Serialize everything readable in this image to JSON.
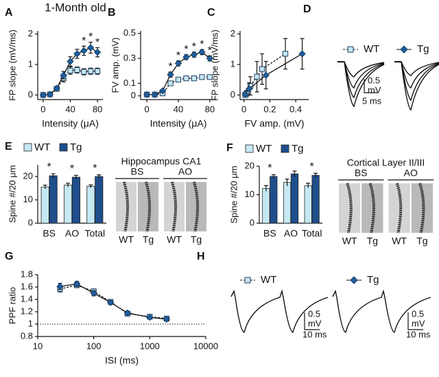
{
  "title": "1-Month old",
  "chart_data": [
    {
      "type": "line",
      "panel": "A",
      "xlabel": "Intensity (μA)",
      "ylabel": "FP slope (mV/ms)",
      "x": [
        0,
        10,
        20,
        30,
        40,
        50,
        60,
        70,
        80
      ],
      "xlim": [
        -8,
        88
      ],
      "xticks": [
        0,
        40,
        80
      ],
      "ylim": [
        -0.15,
        2.1
      ],
      "yticks": [
        0,
        1,
        2
      ],
      "series": [
        {
          "name": "WT",
          "color": "#c5e8f3",
          "marker": "square",
          "line_style": "dashed",
          "values": [
            0,
            0.02,
            0.2,
            0.55,
            0.8,
            0.82,
            0.76,
            0.78,
            0.78
          ],
          "errors": [
            0.03,
            0.03,
            0.06,
            0.12,
            0.12,
            0.1,
            0.1,
            0.1,
            0.1
          ]
        },
        {
          "name": "Tg",
          "color": "#1f5f9e",
          "marker": "diamond",
          "line_style": "solid",
          "values": [
            0,
            0.02,
            0.22,
            0.65,
            1.1,
            1.35,
            1.45,
            1.55,
            1.4
          ],
          "errors": [
            0.03,
            0.03,
            0.06,
            0.12,
            0.15,
            0.15,
            0.15,
            0.18,
            0.15
          ]
        }
      ],
      "significance": [
        null,
        null,
        null,
        null,
        null,
        null,
        "*",
        "*",
        "*"
      ]
    },
    {
      "type": "line",
      "panel": "B",
      "xlabel": "Intensity (μA)",
      "ylabel": "FV amp. (mV)",
      "x": [
        0,
        10,
        20,
        30,
        40,
        50,
        60,
        70,
        80
      ],
      "xlim": [
        -8,
        88
      ],
      "xticks": [
        0,
        40,
        80
      ],
      "ylim": [
        -0.03,
        0.52
      ],
      "yticks": [
        0,
        0.1,
        0.3,
        0.5
      ],
      "series": [
        {
          "name": "WT",
          "color": "#c5e8f3",
          "marker": "square",
          "line_style": "dashed",
          "values": [
            0.01,
            0.01,
            0.02,
            0.1,
            0.13,
            0.14,
            0.14,
            0.15,
            0.15
          ],
          "errors": [
            0.005,
            0.005,
            0.01,
            0.015,
            0.01,
            0.01,
            0.01,
            0.01,
            0.01
          ]
        },
        {
          "name": "Tg",
          "color": "#1f5f9e",
          "marker": "diamond",
          "line_style": "solid",
          "values": [
            0.01,
            0.01,
            0.04,
            0.17,
            0.26,
            0.31,
            0.33,
            0.35,
            0.3
          ],
          "errors": [
            0.005,
            0.005,
            0.01,
            0.02,
            0.02,
            0.02,
            0.02,
            0.02,
            0.02
          ]
        }
      ],
      "significance": [
        null,
        null,
        null,
        "*",
        "*",
        "*",
        "*",
        "*",
        "*"
      ]
    },
    {
      "type": "line",
      "panel": "C",
      "xlabel": "FV amp. (mV)",
      "ylabel": "FP slope (mV/ms)",
      "xlim": [
        -0.03,
        0.5
      ],
      "xticks": [
        0,
        0.2,
        0.4
      ],
      "ylim": [
        -0.15,
        2.1
      ],
      "yticks": [
        0,
        1,
        2
      ],
      "series": [
        {
          "name": "WT",
          "color": "#c5e8f3",
          "marker": "square",
          "line_style": "dashed",
          "x": [
            0.01,
            0.02,
            0.05,
            0.1,
            0.14,
            0.32
          ],
          "values": [
            0,
            0.05,
            0.3,
            0.6,
            0.85,
            1.35
          ],
          "errors": [
            0.05,
            0.1,
            0.3,
            0.5,
            0.5,
            0.5
          ]
        },
        {
          "name": "Tg",
          "color": "#1f5f9e",
          "marker": "diamond",
          "line_style": "solid",
          "x": [
            0.01,
            0.04,
            0.17,
            0.45
          ],
          "values": [
            0.02,
            0.2,
            0.65,
            1.35
          ],
          "errors": [
            0.05,
            0.2,
            0.45,
            0.5
          ]
        }
      ]
    },
    {
      "type": "traces",
      "panel": "D",
      "series": [
        {
          "name": "WT",
          "color": "#c5e8f3",
          "marker": "square"
        },
        {
          "name": "Tg",
          "color": "#1f5f9e",
          "marker": "diamond"
        }
      ],
      "scale_bars": [
        [
          "0.5",
          "mV",
          "5 ms"
        ]
      ]
    },
    {
      "type": "bar",
      "panel": "E",
      "ylabel": "Spine #/20 μm",
      "categories": [
        "BS",
        "AO",
        "Total"
      ],
      "ylim": [
        0,
        25
      ],
      "yticks": [
        0,
        10,
        20
      ],
      "series": [
        {
          "name": "WT",
          "color": "#c5e8f3",
          "values": [
            15.5,
            16.3,
            15.8
          ],
          "errors": [
            0.8,
            0.8,
            0.6
          ]
        },
        {
          "name": "Tg",
          "color": "#1f4e8c",
          "values": [
            20.3,
            19.7,
            20
          ],
          "errors": [
            0.9,
            0.8,
            0.7
          ]
        }
      ],
      "significance": [
        "*",
        "*",
        "*"
      ],
      "images": {
        "title": "Hippocampus CA1",
        "groups": [
          {
            "label": "BS",
            "columns": [
              "WT",
              "Tg"
            ]
          },
          {
            "label": "AO",
            "columns": [
              "WT",
              "Tg"
            ]
          }
        ]
      }
    },
    {
      "type": "bar",
      "panel": "F",
      "ylabel": "Spine #/20 μm",
      "categories": [
        "BS",
        "AO",
        "Total"
      ],
      "ylim": [
        0,
        20
      ],
      "yticks": [
        0,
        10,
        20
      ],
      "series": [
        {
          "name": "WT",
          "color": "#c5e8f3",
          "values": [
            12.2,
            14.3,
            13.2
          ],
          "errors": [
            1,
            1.2,
            0.8
          ]
        },
        {
          "name": "Tg",
          "color": "#1f4e8c",
          "values": [
            16.4,
            17.3,
            16.8
          ],
          "errors": [
            0.6,
            1,
            0.7
          ]
        }
      ],
      "significance": [
        "*",
        null,
        "*"
      ],
      "images": {
        "title": "Cortical Layer II/III",
        "groups": [
          {
            "label": "BS",
            "columns": [
              "WT",
              "Tg"
            ]
          },
          {
            "label": "AO",
            "columns": [
              "WT",
              "Tg"
            ]
          }
        ]
      }
    },
    {
      "type": "line",
      "panel": "G",
      "xlabel": "ISI (ms)",
      "ylabel": "PPF ratio",
      "xscale": "log",
      "x": [
        25,
        50,
        100,
        200,
        400,
        1000,
        2000
      ],
      "xlim": [
        10,
        10000
      ],
      "xticks": [
        10,
        100,
        1000,
        10000
      ],
      "ylim": [
        0.8,
        1.8
      ],
      "yticks": [
        0.8,
        1,
        1.2,
        1.4,
        1.6,
        1.8
      ],
      "hline": 1,
      "series": [
        {
          "name": "WT",
          "color": "#c5e8f3",
          "marker": "square",
          "line_style": "dashed",
          "values": [
            1.57,
            1.63,
            1.53,
            1.36,
            1.17,
            1.12,
            1.09
          ],
          "errors": [
            0.05,
            0.04,
            0.04,
            0.03,
            0.03,
            0.02,
            0.03
          ]
        },
        {
          "name": "Tg",
          "color": "#1f5f9e",
          "marker": "diamond",
          "line_style": "solid",
          "values": [
            1.61,
            1.65,
            1.5,
            1.35,
            1.18,
            1.11,
            1.08
          ],
          "errors": [
            0.05,
            0.04,
            0.04,
            0.03,
            0.03,
            0.02,
            0.03
          ]
        }
      ]
    },
    {
      "type": "traces",
      "panel": "H",
      "series": [
        {
          "name": "WT",
          "color": "#c5e8f3",
          "marker": "square"
        },
        {
          "name": "Tg",
          "color": "#1f5f9e",
          "marker": "diamond"
        }
      ],
      "scale_bars": [
        [
          "0.5",
          "mV",
          "10 ms"
        ],
        [
          "0.5",
          "mV",
          "10 ms"
        ]
      ]
    }
  ]
}
